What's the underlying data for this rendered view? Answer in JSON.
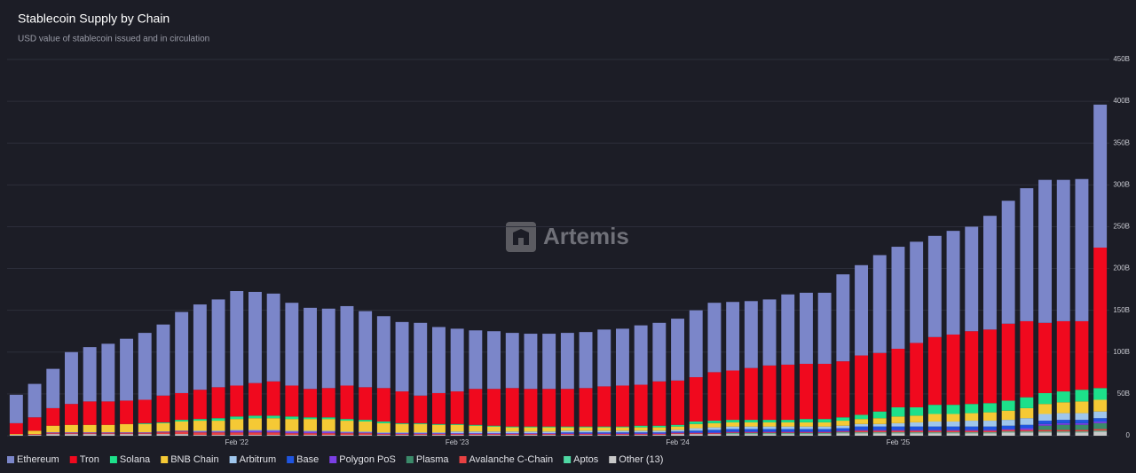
{
  "chart_data": {
    "type": "stacked_bar",
    "title": "Stablecoin Supply by Chain",
    "subtitle": "USD value of stablecoin issued and in circulation",
    "watermark": "Artemis",
    "categories": [
      null,
      null,
      null,
      null,
      null,
      null,
      null,
      null,
      null,
      null,
      null,
      null,
      "Feb '22",
      null,
      null,
      null,
      null,
      null,
      null,
      null,
      null,
      null,
      null,
      null,
      "Feb '23",
      null,
      null,
      null,
      null,
      null,
      null,
      null,
      null,
      null,
      null,
      null,
      "Feb '24",
      null,
      null,
      null,
      null,
      null,
      null,
      null,
      null,
      null,
      null,
      null,
      "Feb '25",
      null,
      null,
      null,
      null,
      null,
      null,
      null,
      null,
      null,
      null,
      null
    ],
    "ylim": [
      0,
      450
    ],
    "yticks": [
      0,
      {
        "value": 50,
        "label": "50B"
      },
      {
        "value": 100,
        "label": "100B"
      },
      {
        "value": 150,
        "label": "150B"
      },
      {
        "value": 200,
        "label": "200B"
      },
      {
        "value": 250,
        "label": "250B"
      },
      {
        "value": 300,
        "label": "300B"
      },
      {
        "value": 350,
        "label": "350B"
      },
      {
        "value": 400,
        "label": "400B"
      },
      {
        "value": 450,
        "label": "450B"
      }
    ],
    "grid": true,
    "legend": "bottom",
    "series": [
      {
        "name": "Ethereum",
        "color": "#7b86c9",
        "values": [
          34,
          40,
          47,
          62,
          65,
          69,
          74,
          80,
          85,
          97,
          102,
          105,
          113,
          109,
          105,
          99,
          97,
          95,
          95,
          91,
          86,
          83,
          87,
          79,
          75,
          70,
          69,
          66,
          66,
          66,
          67,
          67,
          68,
          68,
          71,
          70,
          74,
          80,
          83,
          82,
          80,
          79,
          84,
          85,
          85,
          104,
          108,
          117,
          122,
          121,
          121,
          124,
          125,
          136,
          147,
          159,
          171,
          169,
          170,
          171
        ]
      },
      {
        "name": "Tron",
        "color": "#f0091e",
        "values": [
          13,
          16,
          21,
          25,
          28,
          28,
          28,
          28,
          32,
          32,
          35,
          37,
          37,
          39,
          41,
          37,
          34,
          35,
          40,
          39,
          40,
          38,
          33,
          37,
          39,
          43,
          44,
          46,
          45,
          45,
          45,
          46,
          48,
          49,
          49,
          53,
          53,
          53,
          58,
          59,
          62,
          65,
          66,
          66,
          66,
          67,
          71,
          70,
          70,
          77,
          81,
          84,
          87,
          88,
          92,
          91,
          84,
          84,
          82,
          168
        ]
      },
      {
        "name": "Solana",
        "color": "#1de08a",
        "values": [
          0,
          0,
          0,
          0,
          0,
          0,
          0,
          1,
          1,
          2,
          2,
          3,
          3,
          3,
          3,
          3,
          2,
          2,
          2,
          2,
          2,
          1,
          1,
          1,
          1,
          1,
          1,
          1,
          1,
          1,
          1,
          1,
          1,
          1,
          2,
          2,
          2,
          3,
          3,
          3,
          3,
          3,
          3,
          4,
          4,
          4,
          5,
          8,
          11,
          10,
          11,
          11,
          11,
          11,
          12,
          13,
          13,
          13,
          14,
          14
        ]
      },
      {
        "name": "BNB Chain",
        "color": "#f5c935",
        "values": [
          1,
          4,
          8,
          9,
          9,
          9,
          10,
          10,
          10,
          11,
          12,
          12,
          13,
          14,
          14,
          14,
          14,
          14,
          13,
          12,
          11,
          10,
          10,
          9,
          8,
          7,
          6,
          5,
          5,
          5,
          4,
          4,
          4,
          4,
          4,
          4,
          4,
          5,
          5,
          5,
          5,
          5,
          5,
          5,
          5,
          6,
          6,
          7,
          8,
          8,
          9,
          9,
          9,
          10,
          11,
          12,
          12,
          13,
          14,
          14
        ]
      },
      {
        "name": "Arbitrum",
        "color": "#9fc6ec",
        "values": [
          0,
          0,
          0,
          0,
          0,
          0,
          0,
          0,
          0,
          0,
          1,
          1,
          1,
          1,
          1,
          1,
          1,
          1,
          1,
          1,
          1,
          1,
          1,
          1,
          2,
          2,
          2,
          2,
          2,
          2,
          2,
          2,
          2,
          2,
          2,
          2,
          2,
          3,
          3,
          3,
          3,
          3,
          3,
          3,
          3,
          3,
          3,
          3,
          4,
          5,
          6,
          6,
          7,
          7,
          7,
          8,
          8,
          8,
          8,
          8
        ]
      },
      {
        "name": "Base",
        "color": "#1f55e0",
        "values": [
          0,
          0,
          0,
          0,
          0,
          0,
          0,
          0,
          0,
          0,
          0,
          0,
          0,
          0,
          0,
          0,
          0,
          0,
          0,
          0,
          0,
          0,
          0,
          0,
          0,
          0,
          0,
          0,
          0,
          0,
          1,
          1,
          1,
          1,
          1,
          1,
          1,
          2,
          3,
          3,
          3,
          3,
          3,
          3,
          3,
          3,
          4,
          4,
          4,
          4,
          4,
          4,
          4,
          4,
          4,
          4,
          4,
          4,
          4,
          4
        ]
      },
      {
        "name": "Polygon PoS",
        "color": "#7b3fe4",
        "values": [
          0,
          0,
          1,
          1,
          1,
          1,
          1,
          1,
          1,
          1,
          1,
          1,
          2,
          2,
          2,
          2,
          2,
          2,
          1,
          1,
          1,
          1,
          1,
          1,
          1,
          1,
          1,
          1,
          1,
          1,
          1,
          1,
          1,
          1,
          1,
          1,
          1,
          1,
          1,
          1,
          1,
          1,
          1,
          1,
          1,
          1,
          1,
          1,
          1,
          1,
          1,
          1,
          1,
          1,
          1,
          2,
          2,
          2,
          2,
          2
        ]
      },
      {
        "name": "Plasma",
        "color": "#3b8a6a",
        "values": [
          0,
          0,
          0,
          0,
          0,
          0,
          0,
          0,
          0,
          0,
          0,
          0,
          0,
          0,
          0,
          0,
          0,
          0,
          0,
          0,
          0,
          0,
          0,
          0,
          0,
          0,
          0,
          0,
          0,
          0,
          0,
          0,
          0,
          0,
          0,
          0,
          0,
          0,
          0,
          0,
          0,
          0,
          0,
          0,
          0,
          0,
          0,
          0,
          0,
          0,
          0,
          0,
          0,
          0,
          0,
          0,
          5,
          6,
          6,
          7
        ]
      },
      {
        "name": "Avalanche C-Chain",
        "color": "#e84142",
        "values": [
          0,
          1,
          1,
          1,
          1,
          1,
          1,
          1,
          2,
          3,
          3,
          3,
          3,
          3,
          3,
          2,
          2,
          2,
          2,
          2,
          1,
          1,
          1,
          1,
          1,
          1,
          1,
          1,
          1,
          1,
          1,
          1,
          1,
          1,
          1,
          1,
          1,
          1,
          1,
          1,
          1,
          1,
          1,
          1,
          1,
          1,
          2,
          2,
          2,
          2,
          2,
          2,
          2,
          2,
          2,
          2,
          2,
          2,
          2,
          2
        ]
      },
      {
        "name": "Aptos",
        "color": "#4fd8a3",
        "values": [
          0,
          0,
          0,
          0,
          0,
          0,
          0,
          0,
          0,
          0,
          0,
          0,
          0,
          0,
          0,
          0,
          0,
          0,
          0,
          0,
          0,
          0,
          0,
          0,
          0,
          0,
          0,
          0,
          0,
          0,
          0,
          0,
          0,
          0,
          0,
          0,
          0,
          0,
          0,
          1,
          1,
          1,
          1,
          1,
          1,
          1,
          1,
          1,
          1,
          1,
          1,
          1,
          1,
          1,
          1,
          1,
          1,
          1,
          1,
          1
        ]
      },
      {
        "name": "Other (13)",
        "color": "#c8c8c8",
        "values": [
          1,
          1,
          2,
          2,
          2,
          2,
          2,
          2,
          2,
          2,
          1,
          1,
          1,
          1,
          1,
          1,
          1,
          1,
          1,
          1,
          1,
          1,
          1,
          1,
          1,
          1,
          1,
          1,
          1,
          1,
          1,
          1,
          1,
          1,
          1,
          1,
          2,
          2,
          2,
          2,
          2,
          2,
          2,
          2,
          2,
          3,
          3,
          3,
          3,
          3,
          3,
          3,
          3,
          3,
          4,
          4,
          4,
          4,
          4,
          5
        ]
      }
    ]
  }
}
